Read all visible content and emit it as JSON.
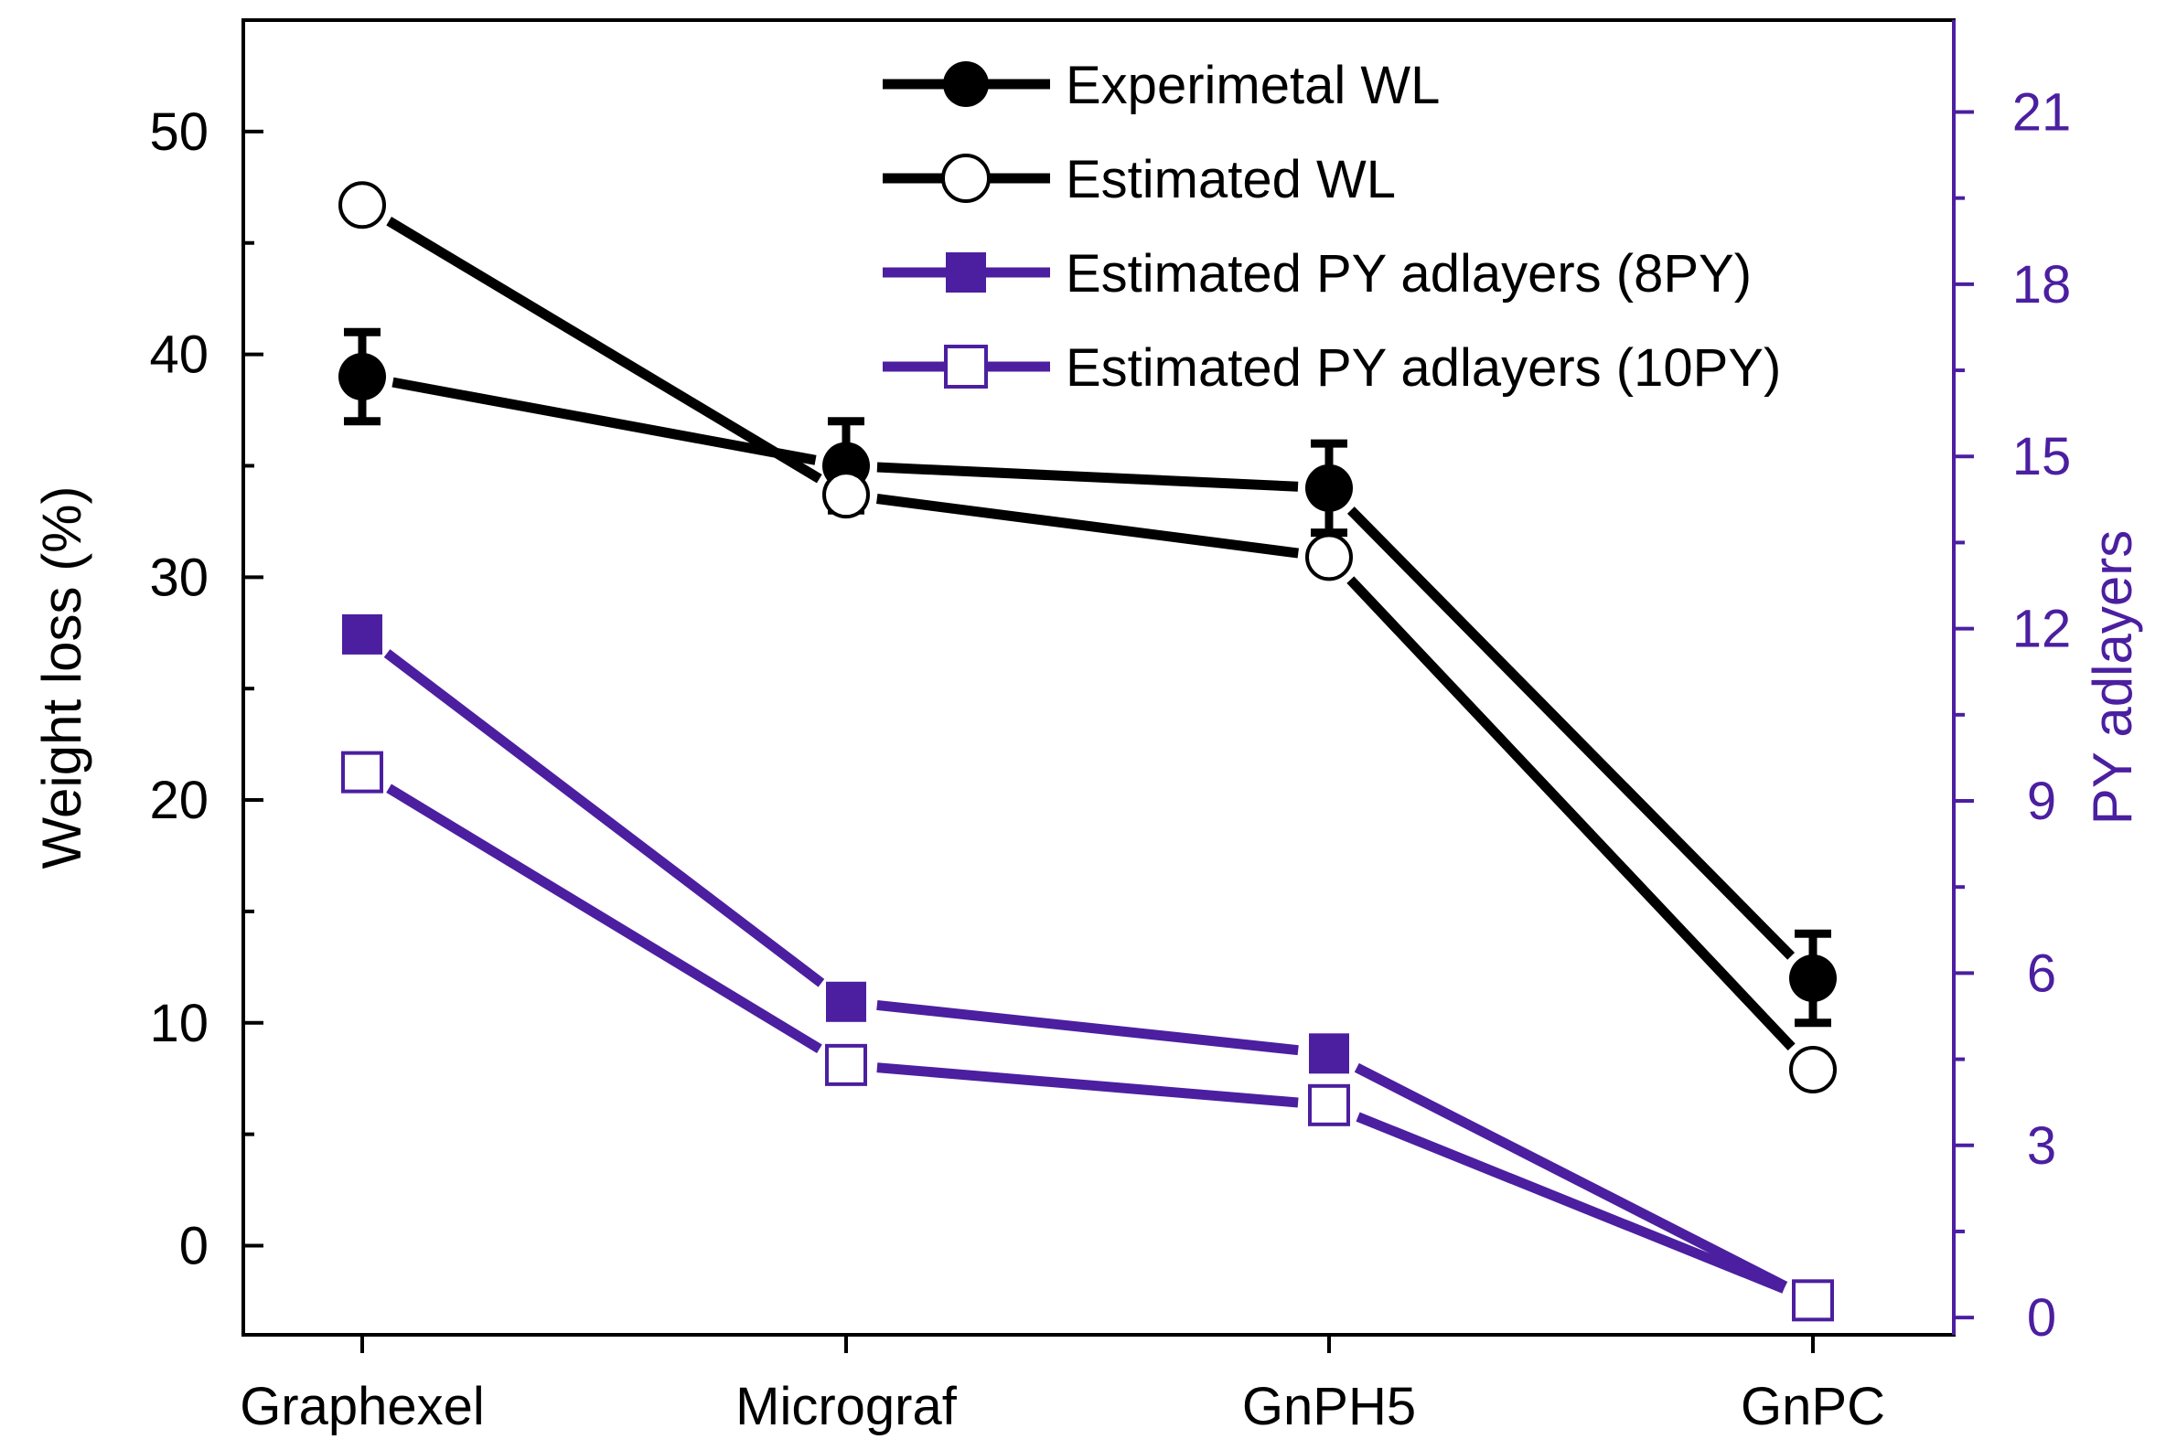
{
  "chart_data": {
    "type": "line",
    "categories": [
      "Graphexel",
      "Micrograf",
      "GnPH5",
      "GnPC"
    ],
    "left_axis": {
      "label": "Weight loss (%)",
      "ylim": [
        -4,
        55
      ],
      "ticks": [
        0,
        10,
        20,
        30,
        40,
        50
      ]
    },
    "right_axis": {
      "label": "PY adlayers",
      "ylim": [
        -0.3,
        22.6
      ],
      "ticks": [
        0,
        3,
        6,
        9,
        12,
        15,
        18,
        21
      ],
      "color": "#4b1fa0"
    },
    "series": [
      {
        "name": "Experimetal WL",
        "axis": "left",
        "marker": "filled-circle",
        "color": "#000000",
        "values": [
          39,
          35,
          34,
          12
        ],
        "error": [
          2,
          2,
          2,
          2
        ]
      },
      {
        "name": "Estimated WL",
        "axis": "left",
        "marker": "open-circle",
        "color": "#000000",
        "values": [
          46.7,
          33.7,
          30.9,
          7.9
        ]
      },
      {
        "name": "Estimated PY adlayers (8PY)",
        "axis": "right",
        "marker": "filled-square",
        "color": "#4b1fa0",
        "values": [
          11.9,
          5.5,
          4.6,
          0.3
        ]
      },
      {
        "name": "Estimated PY adlayers (10PY)",
        "axis": "right",
        "marker": "open-square",
        "color": "#4b1fa0",
        "values": [
          9.5,
          4.4,
          3.7,
          0.3
        ]
      }
    ]
  }
}
